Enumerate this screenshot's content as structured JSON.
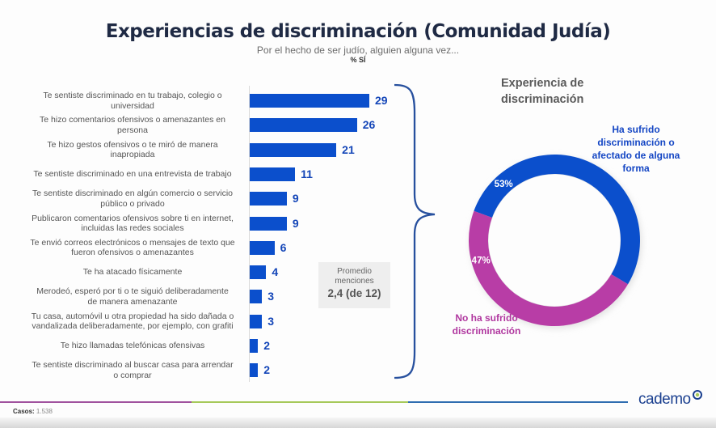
{
  "header": {
    "title": "Experiencias de discriminación (Comunidad Judía)",
    "subtitle": "Por el hecho de ser judío, alguien alguna vez...",
    "unit_label": "% SÍ"
  },
  "chart_data": [
    {
      "type": "bar",
      "orientation": "horizontal",
      "title": "Experiencias de discriminación (Comunidad Judía)",
      "subtitle": "Por el hecho de ser judío, alguien alguna vez...",
      "ylabel": "% SÍ",
      "categories": [
        "Te sentiste discriminado en tu trabajo, colegio o universidad",
        "Te hizo comentarios ofensivos o amenazantes en persona",
        "Te hizo gestos ofensivos o te miró de manera inapropiada",
        "Te sentiste discriminado en una entrevista de trabajo",
        "Te sentiste discriminado en algún comercio o servicio público o privado",
        "Publicaron comentarios ofensivos sobre ti en internet, incluidas las redes sociales",
        "Te envió correos electrónicos o mensajes de texto que fueron ofensivos o amenazantes",
        "Te ha atacado físicamente",
        "Merodeó, esperó por ti o te siguió deliberadamente de manera amenazante",
        "Tu casa, automóvil u otra propiedad ha sido dañada o vandalizada deliberadamente, por ejemplo, con grafiti",
        "Te hizo llamadas telefónicas ofensivas",
        "Te sentiste discriminado al buscar casa para arrendar o comprar"
      ],
      "values": [
        29,
        26,
        21,
        11,
        9,
        9,
        6,
        4,
        3,
        3,
        2,
        2
      ],
      "xlim": [
        0,
        30
      ],
      "color": "#0b4fcc",
      "grid": false,
      "annotation": {
        "line1": "Promedio",
        "line2": "menciones",
        "value": "2,4 (de 12)"
      }
    },
    {
      "type": "pie",
      "donut": true,
      "title": "Experiencia de discriminación",
      "slices": [
        {
          "label": "Ha sufrido discriminación o afectado de alguna forma",
          "value": 53,
          "display": "53%",
          "color": "#0b4fcc"
        },
        {
          "label": "No ha sufrido discriminación",
          "value": 47,
          "display": "47%",
          "color": "#b83da6"
        }
      ]
    }
  ],
  "labels": {
    "cat": [
      [
        "Te sentiste discriminado en tu trabajo, colegio o",
        "universidad"
      ],
      [
        "Te hizo comentarios ofensivos o amenazantes en",
        "persona"
      ],
      [
        "Te hizo gestos ofensivos o te miró de manera",
        "inapropiada"
      ],
      [
        "Te sentiste discriminado en una entrevista de trabajo"
      ],
      [
        "Te sentiste discriminado en algún comercio o servicio",
        "público o privado"
      ],
      [
        "Publicaron comentarios ofensivos sobre ti en internet,",
        "incluidas las redes sociales"
      ],
      [
        "Te envió correos electrónicos o mensajes de texto que",
        "fueron ofensivos o amenazantes"
      ],
      [
        "Te ha atacado físicamente"
      ],
      [
        "Merodeó, esperó por ti o te siguió deliberadamente",
        "de manera amenazante"
      ],
      [
        "Tu casa, automóvil u otra propiedad ha sido dañada o",
        "vandalizada deliberadamente, por ejemplo, con grafiti"
      ],
      [
        "Te hizo llamadas telefónicas ofensivas"
      ],
      [
        "Te sentiste discriminado al buscar casa para arrendar",
        "o comprar"
      ]
    ],
    "donut_title": [
      "Experiencia de",
      "discriminación"
    ],
    "yes_lines": [
      "Ha sufrido",
      "discriminación o",
      "afectado de alguna",
      "forma"
    ],
    "no_lines": [
      "No ha sufrido",
      "discriminación"
    ]
  },
  "footer": {
    "casos_label": "Casos:",
    "casos_value": "1.538",
    "brand": "cademo",
    "line_colors": [
      "#a0529e",
      "#a6c95a",
      "#2f6db0"
    ]
  }
}
